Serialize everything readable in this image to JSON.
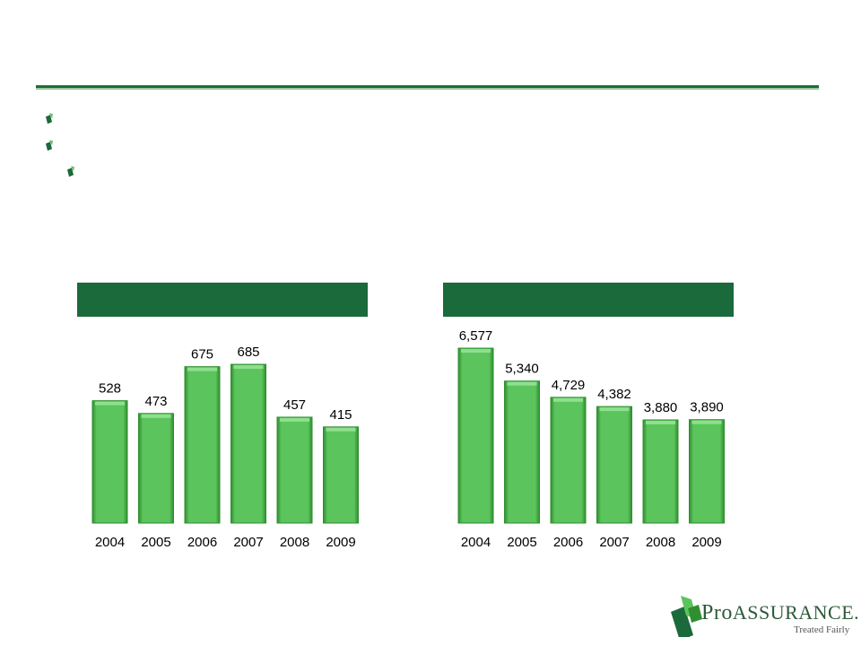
{
  "brand": {
    "name_part1": "Pro",
    "name_part2": "Assurance",
    "tagline": "Treated Fairly",
    "mark": "."
  },
  "colors": {
    "bar": "#5cc45c",
    "bar_dark": "#2f8f2f",
    "header": "#1a6a3b",
    "rule": "#1e6b3a"
  },
  "chart_data": [
    {
      "type": "bar",
      "title": "",
      "categories": [
        "2004",
        "2005",
        "2006",
        "2007",
        "2008",
        "2009"
      ],
      "values": [
        528,
        473,
        675,
        685,
        457,
        415
      ],
      "value_labels": [
        "528",
        "473",
        "675",
        "685",
        "457",
        "415"
      ]
    },
    {
      "type": "bar",
      "title": "",
      "categories": [
        "2004",
        "2005",
        "2006",
        "2007",
        "2008",
        "2009"
      ],
      "values": [
        6577,
        5340,
        4729,
        4382,
        3880,
        3890
      ],
      "value_labels": [
        "6,577",
        "5,340",
        "4,729",
        "4,382",
        "3,880",
        "3,890"
      ]
    }
  ]
}
